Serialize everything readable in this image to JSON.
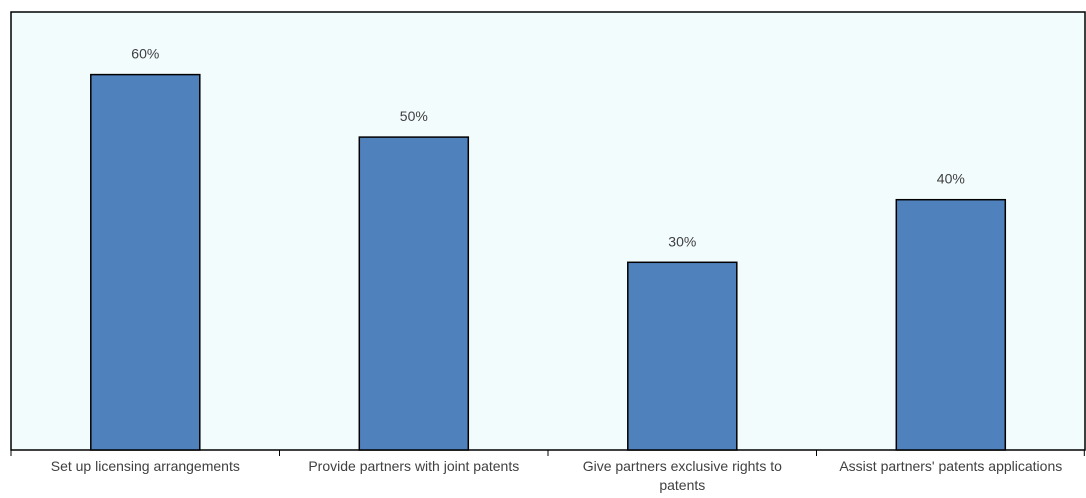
{
  "chart_data": {
    "type": "bar",
    "title": "",
    "xlabel": "",
    "ylabel": "",
    "categories": [
      [
        "Set up licensing arrangements"
      ],
      [
        "Provide partners with joint patents"
      ],
      [
        "Give partners exclusive rights to",
        "patents"
      ],
      [
        "Assist partners' patents applications"
      ]
    ],
    "values": [
      60,
      50,
      30,
      40
    ],
    "value_labels": [
      "60%",
      "50%",
      "30%",
      "40%"
    ],
    "ylim": [
      0,
      70
    ],
    "grid": false,
    "legend": "none",
    "colors": {
      "bar": "#4f81bd",
      "bar_outline": "#000000",
      "plot_background": "#f3fcfd",
      "axis": "#000000"
    }
  }
}
